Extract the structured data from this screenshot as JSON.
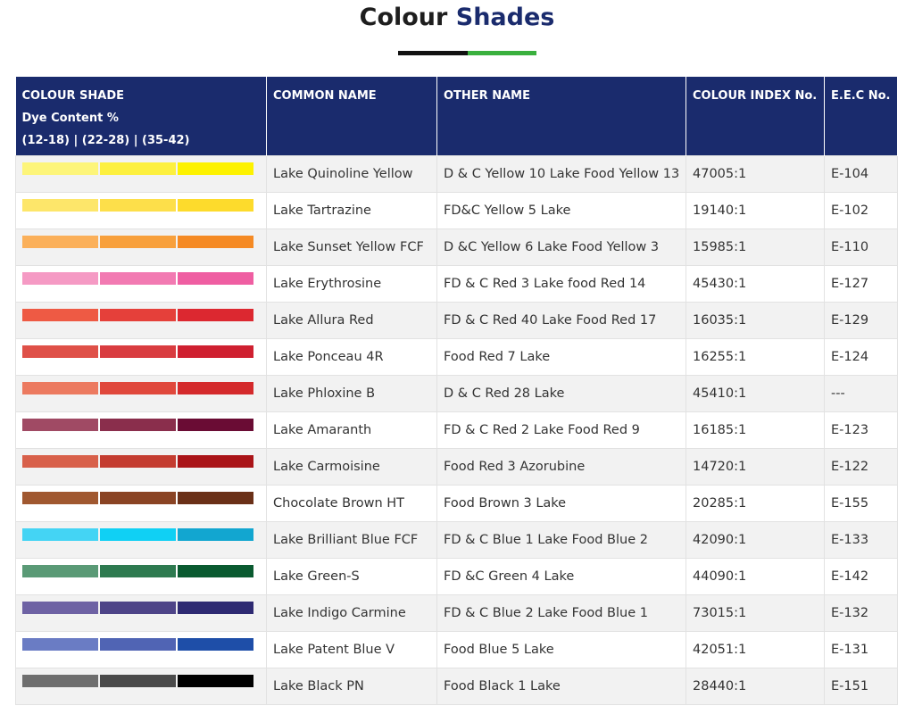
{
  "header": {
    "title_part1": "Colour",
    "title_part2": "Shades"
  },
  "table": {
    "columns": [
      "COLOUR SHADE",
      "COMMON NAME",
      "OTHER NAME",
      "COLOUR INDEX No.",
      "E.E.C No."
    ],
    "shade_subtitle": "Dye Content %",
    "shade_ranges": "(12-18) | (22-28) | (35-42)",
    "rows": [
      {
        "swatches": [
          "#fdf57a",
          "#fdf03f",
          "#fdf200"
        ],
        "common_name": "Lake Quinoline Yellow",
        "other_name": "D & C Yellow 10 Lake Food Yellow 13",
        "colour_index": "47005:1",
        "eec": "E-104"
      },
      {
        "swatches": [
          "#fde66a",
          "#fddf4a",
          "#fddb2c"
        ],
        "common_name": "Lake Tartrazine",
        "other_name": "FD&C Yellow 5 Lake",
        "colour_index": "19140:1",
        "eec": "E-102"
      },
      {
        "swatches": [
          "#fbb05a",
          "#f8a03c",
          "#f58a24"
        ],
        "common_name": "Lake Sunset Yellow FCF",
        "other_name": "D &C Yellow 6 Lake Food Yellow 3",
        "colour_index": "15985:1",
        "eec": "E-110"
      },
      {
        "swatches": [
          "#f59ac4",
          "#f27ab2",
          "#ef5ea2"
        ],
        "common_name": "Lake Erythrosine",
        "other_name": "FD & C Red 3 Lake food Red 14",
        "colour_index": "45430:1",
        "eec": "E-127"
      },
      {
        "swatches": [
          "#ee5a44",
          "#e5403a",
          "#dc2830"
        ],
        "common_name": "Lake Allura Red",
        "other_name": "FD & C Red 40 Lake Food Red 17",
        "colour_index": "16035:1",
        "eec": "E-129"
      },
      {
        "swatches": [
          "#df5048",
          "#d93c40",
          "#cf2030"
        ],
        "common_name": "Lake Ponceau 4R",
        "other_name": "Food Red 7 Lake",
        "colour_index": "16255:1",
        "eec": "E-124"
      },
      {
        "swatches": [
          "#ec7a60",
          "#e0483c",
          "#d42a2c"
        ],
        "common_name": "Lake Phloxine B",
        "other_name": "D & C Red 28 Lake",
        "colour_index": "45410:1",
        "eec": "---"
      },
      {
        "swatches": [
          "#a04a64",
          "#8a2e4c",
          "#6a0c34"
        ],
        "common_name": "Lake Amaranth",
        "other_name": "FD & C Red 2 Lake Food Red 9",
        "colour_index": "16185:1",
        "eec": "E-123"
      },
      {
        "swatches": [
          "#d8604a",
          "#c43c30",
          "#aa1418"
        ],
        "common_name": "Lake Carmoisine",
        "other_name": "Food Red 3 Azorubine",
        "colour_index": "14720:1",
        "eec": "E-122"
      },
      {
        "swatches": [
          "#a05830",
          "#8a4424",
          "#6a3018"
        ],
        "common_name": "Chocolate Brown HT",
        "other_name": "Food Brown 3 Lake",
        "colour_index": "20285:1",
        "eec": "E-155"
      },
      {
        "swatches": [
          "#44d4f4",
          "#10d0f4",
          "#12a6d0"
        ],
        "common_name": "Lake Brilliant Blue FCF",
        "other_name": "FD & C Blue 1 Lake Food Blue 2",
        "colour_index": "42090:1",
        "eec": "E-133"
      },
      {
        "swatches": [
          "#5a9a76",
          "#2e7a50",
          "#0a5a30"
        ],
        "common_name": "Lake Green-S",
        "other_name": "FD &C Green 4 Lake",
        "colour_index": "44090:1",
        "eec": "E-142"
      },
      {
        "swatches": [
          "#6e62a4",
          "#4e4488",
          "#2e2a72"
        ],
        "common_name": "Lake Indigo Carmine",
        "other_name": "FD & C Blue 2 Lake Food Blue 1",
        "colour_index": "73015:1",
        "eec": "E-132"
      },
      {
        "swatches": [
          "#6a7cc4",
          "#5064b4",
          "#1e4ea8"
        ],
        "common_name": "Lake Patent Blue V",
        "other_name": "Food Blue 5 Lake",
        "colour_index": "42051:1",
        "eec": "E-131"
      },
      {
        "swatches": [
          "#6e6e6e",
          "#4a4a4a",
          "#000000"
        ],
        "common_name": "Lake Black PN",
        "other_name": "Food Black 1 Lake",
        "colour_index": "28440:1",
        "eec": "E-151"
      }
    ]
  }
}
